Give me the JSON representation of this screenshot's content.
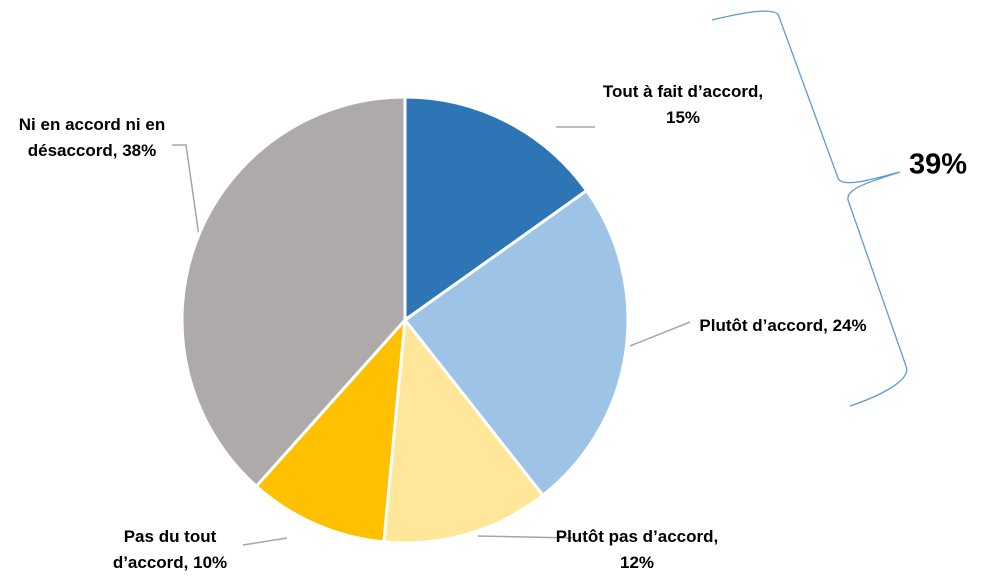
{
  "chart_data": {
    "type": "pie",
    "values": [
      15,
      24,
      12,
      10,
      38
    ],
    "value_labels": [
      "Tout à fait d’accord, 15%",
      "Plutôt d’accord, 24%",
      "Plutôt pas d’accord, 12%",
      "Pas du tout d’accord, 10%",
      "Ni en accord ni en désaccord, 38%"
    ],
    "colors": [
      "#2e75b6",
      "#9dc3e6",
      "#ffe699",
      "#ffc000",
      "#aeaaaa"
    ],
    "annotation": "39%"
  }
}
